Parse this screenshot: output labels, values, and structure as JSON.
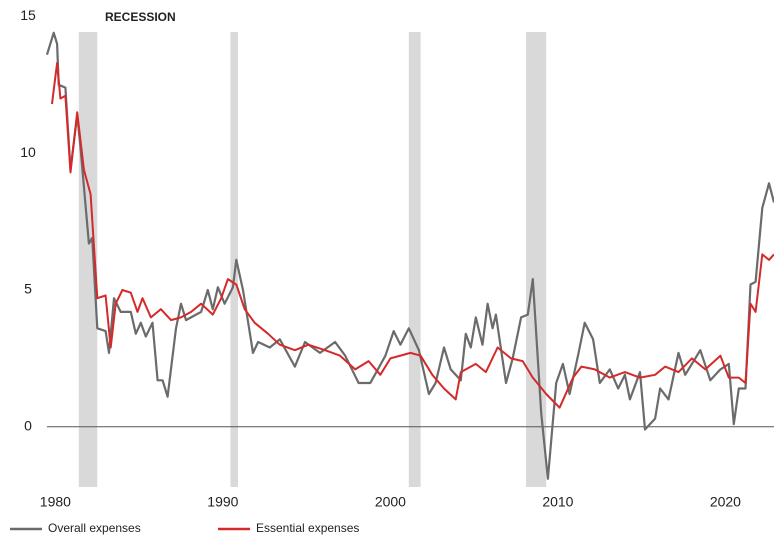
{
  "chart_data": {
    "type": "line",
    "recession_label": "RECESSION",
    "recession_color": "#d9d9d9",
    "recessions": [
      [
        1981.4,
        1982.5
      ],
      [
        1990.45,
        1990.9
      ],
      [
        2001.1,
        2001.8
      ],
      [
        2008.1,
        2009.3
      ]
    ],
    "xlim": [
      1979.5,
      2022.9
    ],
    "ylim": [
      -2.2,
      15.6
    ],
    "xticks": [
      1980,
      1990,
      2000,
      2010,
      2020
    ],
    "yticks": [
      0,
      5,
      10,
      15
    ],
    "series": [
      {
        "name": "Overall expenses",
        "color": "#6b6b6b",
        "x": [
          1979.5,
          1979.9,
          1980.1,
          1980.2,
          1980.6,
          1980.9,
          1981.3,
          1981.5,
          1982.0,
          1982.2,
          1982.5,
          1983.0,
          1983.2,
          1983.5,
          1983.9,
          1984.5,
          1984.8,
          1985.1,
          1985.4,
          1985.8,
          1986.1,
          1986.4,
          1986.7,
          1987.2,
          1987.5,
          1987.8,
          1988.7,
          1989.1,
          1989.4,
          1989.7,
          1990.1,
          1990.6,
          1990.8,
          1991.2,
          1991.8,
          1992.1,
          1992.8,
          1993.4,
          1994.3,
          1994.9,
          1995.8,
          1996.7,
          1997.3,
          1998.1,
          1998.8,
          1999.7,
          2000.2,
          2000.6,
          2001.1,
          2001.7,
          2002.3,
          2002.7,
          2003.2,
          2003.6,
          2004.2,
          2004.5,
          2004.8,
          2005.1,
          2005.5,
          2005.8,
          2006.1,
          2006.3,
          2006.9,
          2007.3,
          2007.8,
          2008.2,
          2008.5,
          2009.0,
          2009.4,
          2009.9,
          2010.3,
          2010.7,
          2011.2,
          2011.6,
          2012.1,
          2012.5,
          2013.1,
          2013.6,
          2014.0,
          2014.3,
          2014.9,
          2015.2,
          2015.8,
          2016.1,
          2016.6,
          2017.2,
          2017.6,
          2018.5,
          2019.1,
          2019.7,
          2020.2,
          2020.5,
          2020.8,
          2021.2,
          2021.5,
          2021.8,
          2022.2,
          2022.6,
          2022.9
        ],
        "values": [
          13.6,
          14.4,
          14.0,
          12.5,
          12.4,
          9.4,
          11.4,
          10.2,
          6.7,
          6.9,
          3.6,
          3.5,
          2.7,
          4.7,
          4.2,
          4.2,
          3.4,
          3.8,
          3.3,
          3.8,
          1.7,
          1.7,
          1.1,
          3.6,
          4.5,
          3.9,
          4.2,
          5.0,
          4.3,
          5.1,
          4.5,
          5.1,
          6.1,
          5.0,
          2.7,
          3.1,
          2.9,
          3.2,
          2.2,
          3.1,
          2.7,
          3.1,
          2.6,
          1.6,
          1.6,
          2.6,
          3.5,
          3.0,
          3.6,
          2.8,
          1.2,
          1.6,
          2.9,
          2.1,
          1.7,
          3.4,
          2.9,
          4.0,
          3.0,
          4.5,
          3.6,
          4.1,
          1.6,
          2.5,
          4.0,
          4.1,
          5.4,
          0.5,
          -1.9,
          1.6,
          2.3,
          1.2,
          2.6,
          3.8,
          3.2,
          1.6,
          2.1,
          1.4,
          1.9,
          1.0,
          2.0,
          -0.1,
          0.3,
          1.4,
          1.0,
          2.7,
          1.9,
          2.8,
          1.7,
          2.1,
          2.3,
          0.1,
          1.4,
          1.4,
          5.2,
          5.3,
          8.0,
          8.9,
          8.2
        ]
      },
      {
        "name": "Essential expenses",
        "color": "#d42a2a",
        "x": [
          1979.8,
          1980.1,
          1980.3,
          1980.6,
          1980.9,
          1981.3,
          1981.7,
          1982.1,
          1982.5,
          1983.0,
          1983.3,
          1983.6,
          1984.0,
          1984.5,
          1984.9,
          1985.2,
          1985.7,
          1986.3,
          1986.9,
          1987.5,
          1988.1,
          1988.7,
          1989.4,
          1989.9,
          1990.3,
          1990.8,
          1991.3,
          1991.9,
          1992.7,
          1993.4,
          1994.3,
          1995.1,
          1996.1,
          1997.0,
          1997.9,
          1998.7,
          1999.4,
          2000.0,
          2001.2,
          2001.8,
          2002.5,
          2003.2,
          2003.9,
          2004.2,
          2005.1,
          2005.7,
          2006.4,
          2007.2,
          2007.9,
          2008.5,
          2009.3,
          2010.1,
          2010.9,
          2011.4,
          2012.2,
          2013.1,
          2014.0,
          2014.9,
          2015.8,
          2016.4,
          2017.2,
          2018.0,
          2018.8,
          2019.7,
          2020.2,
          2020.8,
          2021.2,
          2021.5,
          2021.8,
          2022.2,
          2022.6,
          2022.9
        ],
        "values": [
          11.8,
          13.3,
          12.0,
          12.1,
          9.3,
          11.5,
          9.4,
          8.5,
          4.7,
          4.8,
          2.9,
          4.5,
          5.0,
          4.9,
          4.2,
          4.7,
          4.0,
          4.3,
          3.9,
          4.0,
          4.2,
          4.5,
          4.1,
          4.7,
          5.4,
          5.2,
          4.3,
          3.8,
          3.4,
          3.0,
          2.8,
          3.0,
          2.8,
          2.6,
          2.1,
          2.4,
          1.9,
          2.5,
          2.7,
          2.6,
          1.9,
          1.4,
          1.0,
          2.0,
          2.3,
          2.0,
          2.9,
          2.5,
          2.4,
          1.8,
          1.2,
          0.7,
          1.8,
          2.2,
          2.1,
          1.8,
          2.0,
          1.8,
          1.9,
          2.2,
          2.0,
          2.5,
          2.1,
          2.6,
          1.8,
          1.8,
          1.6,
          4.5,
          4.2,
          6.3,
          6.1,
          6.3
        ]
      }
    ]
  }
}
